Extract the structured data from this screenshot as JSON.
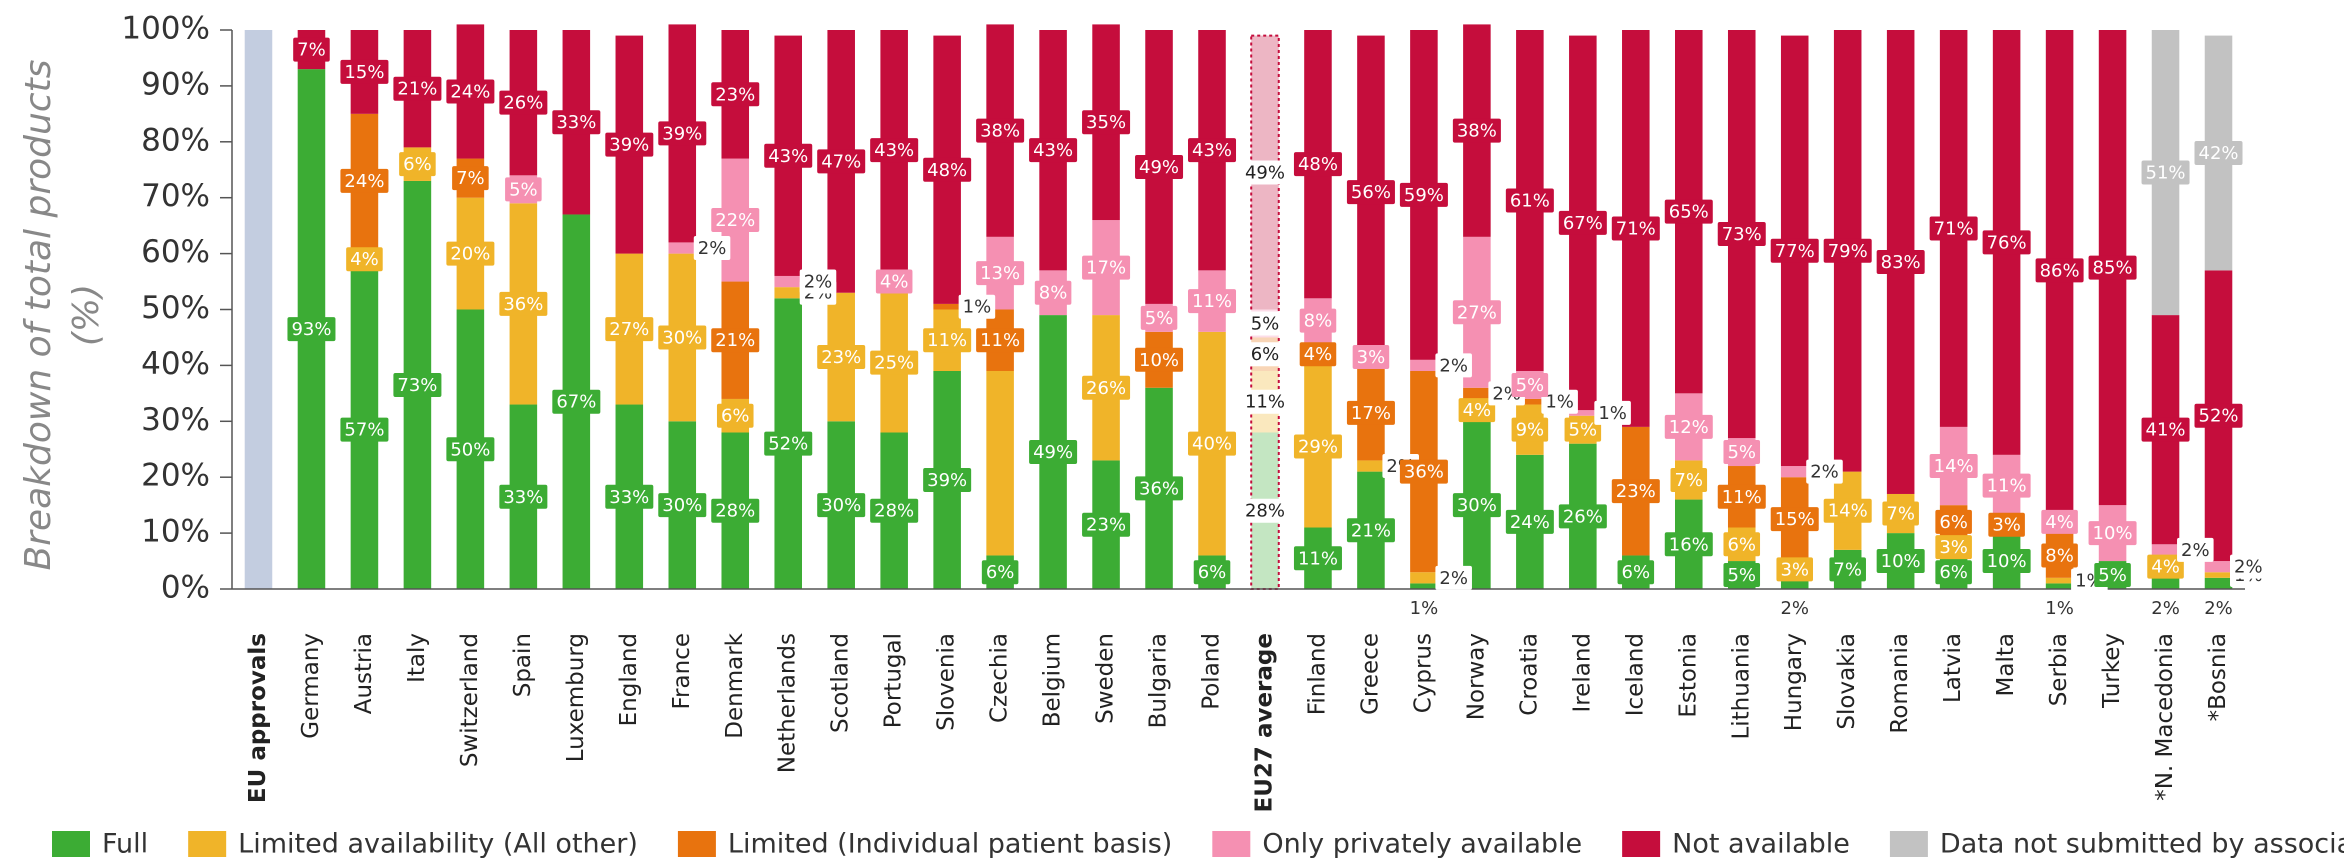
{
  "chart_data": {
    "type": "stacked_bar",
    "ylabel": [
      "Breakdown of total products",
      "(%)"
    ],
    "categories": [
      "EU approvals",
      "Germany",
      "Austria",
      "Italy",
      "Switzerland",
      "Spain",
      "Luxemburg",
      "England",
      "France",
      "Denmark",
      "Netherlands",
      "Scotland",
      "Portugal",
      "Slovenia",
      "Czechia",
      "Belgium",
      "Sweden",
      "Bulgaria",
      "Poland",
      "EU27 average",
      "Finland",
      "Greece",
      "Cyprus",
      "Norway",
      "Croatia",
      "Ireland",
      "Iceland",
      "Estonia",
      "Lithuania",
      "Hungary",
      "Slovakia",
      "Romania",
      "Latvia",
      "Malta",
      "Serbia",
      "Turkey",
      "*N. Macedonia",
      "*Bosnia"
    ],
    "bold_categories": [
      0,
      19
    ],
    "highlight_category": 19,
    "reference_series": {
      "color": "#c3cde0",
      "values": [
        100,
        null,
        null,
        null,
        null,
        null,
        null,
        null,
        null,
        null,
        null,
        null,
        null,
        null,
        null,
        null,
        null,
        null,
        null,
        null,
        null,
        null,
        null,
        null,
        null,
        null,
        null,
        null,
        null,
        null,
        null,
        null,
        null,
        null,
        null,
        null,
        null,
        null
      ]
    },
    "series": [
      {
        "name": "Full",
        "color": "#3cac34",
        "values": [
          null,
          93,
          57,
          73,
          50,
          33,
          67,
          33,
          30,
          28,
          52,
          30,
          28,
          39,
          6,
          49,
          23,
          36,
          6,
          28,
          11,
          21,
          1,
          30,
          24,
          26,
          6,
          16,
          5,
          2,
          7,
          10,
          6,
          10,
          1,
          5,
          2,
          2
        ],
        "value_labels": [
          null,
          "93%",
          "57%",
          "73%",
          "50%",
          "33%",
          "67%",
          "33%",
          "30%",
          "28%",
          "52%",
          "30%",
          "28%",
          "39%",
          "6%",
          "49%",
          "23%",
          "36%",
          "6%",
          "28%",
          "11%",
          "21%",
          "1%",
          "30%",
          "24%",
          "26%",
          "6%",
          "16%",
          "5%",
          "2%",
          "7%",
          "10%",
          "6%",
          "10%",
          "1%",
          "5%",
          "2%",
          "2%"
        ]
      },
      {
        "name": "Limited availability (All other)",
        "color": "#f0b429",
        "values": [
          null,
          null,
          4,
          6,
          20,
          36,
          null,
          27,
          30,
          6,
          2,
          23,
          25,
          11,
          33,
          null,
          26,
          null,
          40,
          11,
          29,
          2,
          2,
          4,
          9,
          5,
          null,
          7,
          6,
          3,
          14,
          7,
          3,
          null,
          1,
          null,
          4,
          1
        ],
        "value_labels": [
          null,
          null,
          "4%",
          "6%",
          "20%",
          "36%",
          null,
          "27%",
          "30%",
          "6%",
          "2%",
          "23%",
          "25%",
          "11%",
          null,
          null,
          "26%",
          null,
          "40%",
          "11%",
          "29%",
          "2%",
          "2%",
          "4%",
          "9%",
          "5%",
          null,
          "7%",
          "6%",
          "3%",
          "14%",
          "7%",
          "3%",
          null,
          "1%",
          null,
          "4%",
          "1%"
        ]
      },
      {
        "name": "Limited (Individual patient basis)",
        "color": "#e8730e",
        "values": [
          null,
          null,
          24,
          null,
          7,
          null,
          null,
          null,
          null,
          21,
          null,
          null,
          null,
          1,
          11,
          null,
          null,
          10,
          null,
          6,
          4,
          17,
          36,
          2,
          1,
          null,
          23,
          null,
          11,
          15,
          null,
          null,
          6,
          3,
          8,
          null,
          null,
          null
        ],
        "value_labels": [
          null,
          null,
          "24%",
          null,
          "7%",
          null,
          null,
          null,
          null,
          "21%",
          null,
          null,
          null,
          "1%",
          "11%",
          null,
          null,
          "10%",
          null,
          "6%",
          "4%",
          "17%",
          "36%",
          "2%",
          "1%",
          null,
          "23%",
          null,
          "11%",
          "15%",
          null,
          null,
          "6%",
          "3%",
          "8%",
          null,
          null,
          null
        ]
      },
      {
        "name": "Only privately available",
        "color": "#f590b2",
        "values": [
          null,
          null,
          null,
          null,
          null,
          5,
          null,
          null,
          2,
          22,
          2,
          null,
          4,
          null,
          13,
          8,
          17,
          5,
          11,
          5,
          8,
          3,
          2,
          27,
          5,
          1,
          null,
          12,
          5,
          2,
          null,
          null,
          14,
          11,
          4,
          10,
          2,
          2
        ],
        "value_labels": [
          null,
          null,
          null,
          null,
          null,
          "5%",
          null,
          null,
          "2%",
          "22%",
          "2%",
          null,
          "4%",
          null,
          "13%",
          "8%",
          "17%",
          "5%",
          "11%",
          "5%",
          "8%",
          "3%",
          "2%",
          "27%",
          "5%",
          "1%",
          null,
          "12%",
          "5%",
          "2%",
          null,
          null,
          "14%",
          "11%",
          "4%",
          "10%",
          "2%",
          "2%"
        ]
      },
      {
        "name": "Not available",
        "color": "#c50d3c",
        "values": [
          null,
          7,
          15,
          21,
          24,
          26,
          33,
          39,
          39,
          23,
          43,
          47,
          43,
          48,
          38,
          43,
          35,
          49,
          43,
          49,
          48,
          56,
          59,
          38,
          61,
          67,
          71,
          65,
          73,
          77,
          79,
          83,
          71,
          76,
          86,
          85,
          41,
          52
        ],
        "value_labels": [
          null,
          "7%",
          "15%",
          "21%",
          "24%",
          "26%",
          "33%",
          "39%",
          "39%",
          "23%",
          "43%",
          "47%",
          "43%",
          "48%",
          "38%",
          "43%",
          "35%",
          "49%",
          "43%",
          "49%",
          "48%",
          "56%",
          "59%",
          "38%",
          "61%",
          "67%",
          "71%",
          "65%",
          "73%",
          "77%",
          "79%",
          "83%",
          "71%",
          "76%",
          "86%",
          "85%",
          "41%",
          "52%"
        ]
      },
      {
        "name": "Data not submitted by association",
        "color": "#c2c2c2",
        "values": [
          null,
          null,
          null,
          null,
          null,
          null,
          null,
          null,
          null,
          null,
          null,
          null,
          null,
          null,
          null,
          null,
          null,
          null,
          null,
          null,
          null,
          null,
          null,
          null,
          null,
          null,
          null,
          null,
          null,
          null,
          null,
          null,
          null,
          null,
          null,
          null,
          51,
          42
        ],
        "value_labels": [
          null,
          null,
          null,
          null,
          null,
          null,
          null,
          null,
          null,
          null,
          null,
          null,
          null,
          null,
          null,
          null,
          null,
          null,
          null,
          null,
          null,
          null,
          null,
          null,
          null,
          null,
          null,
          null,
          null,
          null,
          null,
          null,
          null,
          null,
          null,
          null,
          "51%",
          "42%"
        ]
      }
    ],
    "ylim": [
      0,
      100
    ],
    "yticks": [
      {
        "value": 0,
        "label": "0%"
      },
      {
        "value": 10,
        "label": "10%"
      },
      {
        "value": 20,
        "label": "20%"
      },
      {
        "value": 30,
        "label": "30%"
      },
      {
        "value": 40,
        "label": "40%"
      },
      {
        "value": 50,
        "label": "50%"
      },
      {
        "value": 60,
        "label": "60%"
      },
      {
        "value": 70,
        "label": "70%"
      },
      {
        "value": 80,
        "label": "80%"
      },
      {
        "value": 90,
        "label": "90%"
      },
      {
        "value": 100,
        "label": "100%"
      }
    ],
    "legend": "bottom"
  }
}
